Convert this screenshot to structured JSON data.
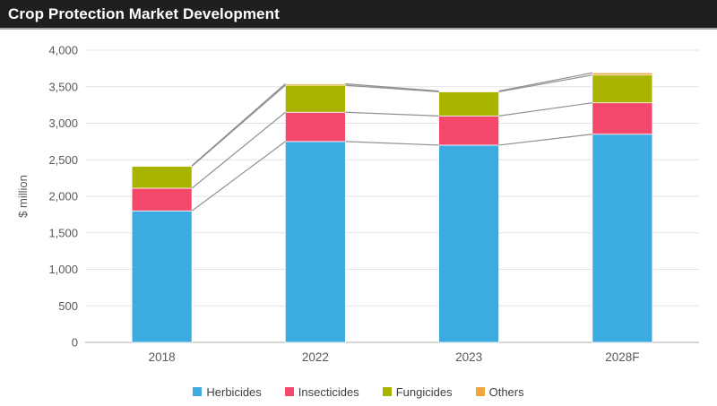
{
  "header": {
    "title": "Crop Protection Market Development"
  },
  "chart_data": {
    "type": "bar",
    "stacked": true,
    "title": "Crop Protection Market Development",
    "ylabel": "$ million",
    "xlabel": "",
    "ylim": [
      0,
      4000
    ],
    "ytick_step": 500,
    "ytick_labels": [
      "0",
      "500",
      "1,000",
      "1,500",
      "2,000",
      "2,500",
      "3,000",
      "3,500",
      "4,000"
    ],
    "grid": true,
    "legend_position": "bottom",
    "series_lines": true,
    "categories": [
      "2018",
      "2022",
      "2023",
      "2028F"
    ],
    "series": [
      {
        "name": "Herbicides",
        "color": "#3babe1",
        "values": [
          1800,
          2750,
          2700,
          2850
        ]
      },
      {
        "name": "Insecticides",
        "color": "#f4476c",
        "values": [
          310,
          400,
          400,
          430
        ]
      },
      {
        "name": "Fungicides",
        "color": "#a9b400",
        "values": [
          300,
          370,
          330,
          380
        ]
      },
      {
        "name": "Others",
        "color": "#efa73c",
        "values": [
          10,
          20,
          10,
          30
        ]
      }
    ],
    "totals": [
      2420,
      3540,
      3440,
      3690
    ]
  },
  "colors": {
    "header_bg": "#1f1f1f",
    "header_text": "#ffffff",
    "gridline": "#e3e3e3",
    "axis_line": "#c9c9c9",
    "axis_text": "#595959",
    "series_line": "#8f8f8f"
  }
}
